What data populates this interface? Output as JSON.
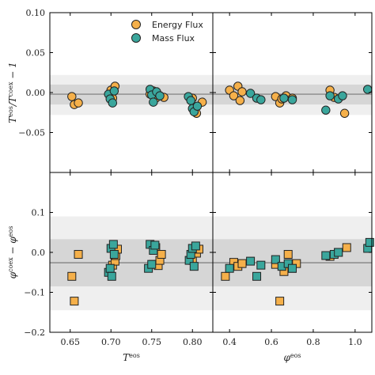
{
  "chart_data": {
    "type": "scatter",
    "legend": {
      "position": "top-left of top-left panel",
      "entries": [
        {
          "label": "Energy Flux",
          "color": "#f5b04a",
          "marker": "circle"
        },
        {
          "label": "Mass Flux",
          "color": "#3aa69c",
          "marker": "circle"
        }
      ]
    },
    "colors": {
      "energy": "#f5b04a",
      "mass": "#3aa69c",
      "edge": "#222222",
      "band_outer": "#efefef",
      "band_inner": "#d6d6d6",
      "refline": "#8a8a8a"
    },
    "rows": [
      {
        "ylabel": "T^eos/T^coex − 1",
        "ylim": [
          -0.1,
          0.1
        ],
        "yticks": [
          -0.05,
          0.0,
          0.05,
          0.1
        ],
        "ytick_labels": [
          "−0.05",
          "0.00",
          "0.05",
          "0.10"
        ],
        "band_outer": [
          -0.028,
          0.022
        ],
        "band_inner": [
          -0.015,
          0.01
        ],
        "refline": -0.002,
        "marker": "circle"
      },
      {
        "ylabel": "φ^coex − φ^eos",
        "ylim": [
          -0.2,
          0.2
        ],
        "yticks": [
          -0.2,
          -0.1,
          0.0,
          0.1
        ],
        "ytick_labels": [
          "−0.2",
          "−0.1",
          "0.0",
          "0.1"
        ],
        "band_outer": [
          -0.145,
          0.09
        ],
        "band_inner": [
          -0.085,
          0.033
        ],
        "refline": -0.026,
        "marker": "square"
      }
    ],
    "cols": [
      {
        "xlabel": "T^eos",
        "xlim": [
          0.625,
          0.825
        ],
        "xticks": [
          0.65,
          0.7,
          0.75,
          0.8
        ],
        "xtick_labels": [
          "0.65",
          "0.70",
          "0.75",
          "0.80"
        ]
      },
      {
        "xlabel": "φ^eos",
        "xlim": [
          0.32,
          1.08
        ],
        "xticks": [
          0.4,
          0.6,
          0.8,
          1.0
        ],
        "xtick_labels": [
          "0.4",
          "0.6",
          "0.8",
          "1.0"
        ]
      }
    ],
    "panels": [
      {
        "row": 0,
        "col": 0,
        "series": [
          {
            "name": "Energy Flux",
            "points": [
              [
                0.652,
                -0.005
              ],
              [
                0.655,
                -0.015
              ],
              [
                0.66,
                -0.013
              ],
              [
                0.7,
                0.003
              ],
              [
                0.702,
                -0.007
              ],
              [
                0.705,
                0.008
              ],
              [
                0.748,
                -0.002
              ],
              [
                0.752,
                0.002
              ],
              [
                0.755,
                -0.007
              ],
              [
                0.76,
                -0.004
              ],
              [
                0.765,
                -0.006
              ],
              [
                0.8,
                -0.007
              ],
              [
                0.805,
                -0.026
              ],
              [
                0.812,
                -0.012
              ]
            ]
          },
          {
            "name": "Mass Flux",
            "points": [
              [
                0.697,
                -0.002
              ],
              [
                0.699,
                -0.008
              ],
              [
                0.702,
                -0.013
              ],
              [
                0.704,
                0.002
              ],
              [
                0.748,
                0.004
              ],
              [
                0.75,
                -0.003
              ],
              [
                0.752,
                -0.012
              ],
              [
                0.756,
                0.001
              ],
              [
                0.76,
                -0.004
              ],
              [
                0.795,
                -0.005
              ],
              [
                0.798,
                -0.01
              ],
              [
                0.8,
                -0.02
              ],
              [
                0.802,
                -0.024
              ],
              [
                0.806,
                -0.017
              ]
            ]
          }
        ]
      },
      {
        "row": 0,
        "col": 1,
        "series": [
          {
            "name": "Energy Flux",
            "points": [
              [
                0.4,
                0.003
              ],
              [
                0.42,
                -0.004
              ],
              [
                0.44,
                0.008
              ],
              [
                0.45,
                -0.01
              ],
              [
                0.46,
                0.001
              ],
              [
                0.62,
                -0.005
              ],
              [
                0.64,
                -0.013
              ],
              [
                0.65,
                -0.008
              ],
              [
                0.67,
                -0.004
              ],
              [
                0.7,
                -0.007
              ],
              [
                0.88,
                0.003
              ],
              [
                0.9,
                -0.006
              ],
              [
                0.95,
                -0.026
              ]
            ]
          },
          {
            "name": "Mass Flux",
            "points": [
              [
                0.5,
                -0.001
              ],
              [
                0.53,
                -0.007
              ],
              [
                0.55,
                -0.009
              ],
              [
                0.66,
                -0.007
              ],
              [
                0.7,
                -0.009
              ],
              [
                0.86,
                -0.022
              ],
              [
                0.88,
                -0.004
              ],
              [
                0.92,
                -0.008
              ],
              [
                0.94,
                -0.004
              ],
              [
                1.06,
                0.004
              ]
            ]
          }
        ]
      },
      {
        "row": 1,
        "col": 0,
        "series": [
          {
            "name": "Energy Flux",
            "points": [
              [
                0.652,
                -0.06
              ],
              [
                0.655,
                -0.122
              ],
              [
                0.66,
                -0.005
              ],
              [
                0.702,
                -0.032
              ],
              [
                0.705,
                -0.022
              ],
              [
                0.706,
                -0.008
              ],
              [
                0.708,
                0.008
              ],
              [
                0.752,
                -0.03
              ],
              [
                0.755,
                0.012
              ],
              [
                0.758,
                -0.033
              ],
              [
                0.76,
                -0.02
              ],
              [
                0.762,
                -0.005
              ],
              [
                0.8,
                -0.02
              ],
              [
                0.805,
                -0.002
              ],
              [
                0.808,
                0.008
              ]
            ]
          },
          {
            "name": "Mass Flux",
            "points": [
              [
                0.697,
                -0.05
              ],
              [
                0.699,
                -0.04
              ],
              [
                0.7,
                0.01
              ],
              [
                0.701,
                -0.06
              ],
              [
                0.703,
                0.02
              ],
              [
                0.704,
                -0.005
              ],
              [
                0.746,
                -0.04
              ],
              [
                0.748,
                0.02
              ],
              [
                0.75,
                -0.03
              ],
              [
                0.752,
                0.005
              ],
              [
                0.754,
                0.018
              ],
              [
                0.796,
                -0.02
              ],
              [
                0.798,
                -0.005
              ],
              [
                0.8,
                0.01
              ],
              [
                0.802,
                -0.035
              ],
              [
                0.804,
                0.016
              ]
            ]
          }
        ]
      },
      {
        "row": 1,
        "col": 1,
        "series": [
          {
            "name": "Energy Flux",
            "points": [
              [
                0.38,
                -0.06
              ],
              [
                0.42,
                -0.025
              ],
              [
                0.44,
                -0.035
              ],
              [
                0.46,
                -0.028
              ],
              [
                0.62,
                -0.03
              ],
              [
                0.64,
                -0.122
              ],
              [
                0.66,
                -0.048
              ],
              [
                0.68,
                -0.005
              ],
              [
                0.7,
                -0.04
              ],
              [
                0.72,
                -0.028
              ],
              [
                0.88,
                -0.01
              ],
              [
                0.92,
                0.0
              ],
              [
                0.96,
                0.012
              ]
            ]
          },
          {
            "name": "Mass Flux",
            "points": [
              [
                0.4,
                -0.04
              ],
              [
                0.5,
                -0.022
              ],
              [
                0.53,
                -0.06
              ],
              [
                0.55,
                -0.032
              ],
              [
                0.62,
                -0.018
              ],
              [
                0.65,
                -0.035
              ],
              [
                0.68,
                -0.028
              ],
              [
                0.7,
                -0.04
              ],
              [
                0.86,
                -0.008
              ],
              [
                0.9,
                -0.005
              ],
              [
                0.92,
                0.0
              ],
              [
                1.06,
                0.01
              ],
              [
                1.07,
                0.025
              ]
            ]
          }
        ]
      }
    ]
  }
}
